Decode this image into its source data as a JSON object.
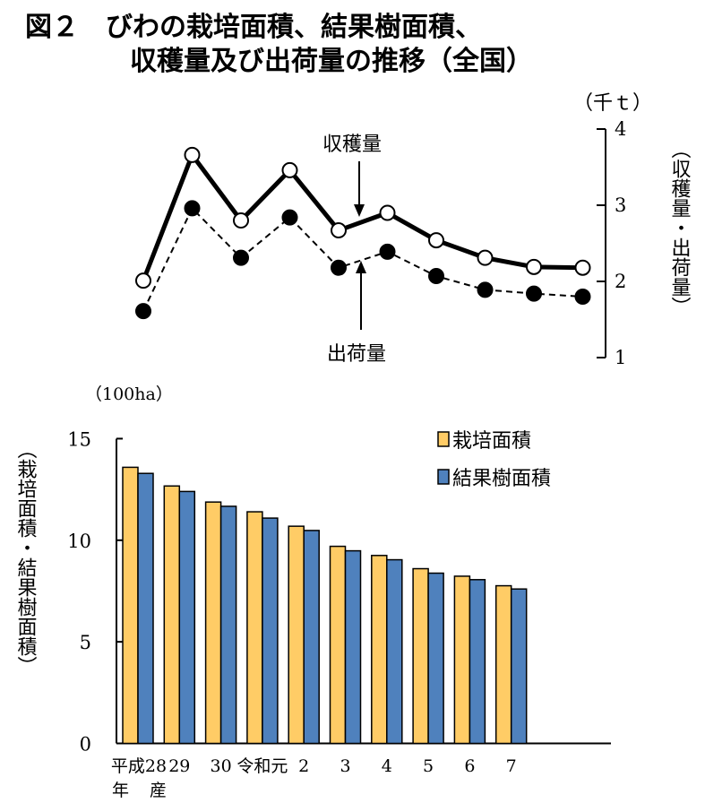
{
  "title": {
    "line1": "図２　びわの栽培面積、結果樹面積、",
    "line2": "収穫量及び出荷量の推移（全国）"
  },
  "colors": {
    "cultivated": "#FFCC66",
    "bearing": "#4F81BD",
    "line": "#000000"
  },
  "chart_data": [
    {
      "type": "line",
      "unit": "（千ｔ）",
      "ylabel": "（収穫量・出荷量）",
      "yaxis_side": "right",
      "ylim": [
        1,
        4
      ],
      "yticks": [
        "1",
        "2",
        "3",
        "4"
      ],
      "categories": [
        "平成28",
        "29",
        "30",
        "令和元",
        "2",
        "3",
        "4",
        "5",
        "6",
        "7"
      ],
      "series": [
        {
          "name": "収穫量",
          "marker": "open-circle",
          "style": "solid",
          "values": [
            2.01,
            3.66,
            2.8,
            3.46,
            2.67,
            2.9,
            2.54,
            2.31,
            2.19,
            2.18
          ]
        },
        {
          "name": "出荷量",
          "marker": "filled-circle",
          "style": "dashed",
          "values": [
            1.61,
            2.96,
            2.31,
            2.84,
            2.18,
            2.39,
            2.07,
            1.89,
            1.84,
            1.8
          ]
        }
      ]
    },
    {
      "type": "bar",
      "unit": "（100ha）",
      "ylabel": "（栽培面積・結果樹面積）",
      "ylim": [
        0,
        15
      ],
      "yticks": [
        "0",
        "5",
        "10",
        "15"
      ],
      "categories": [
        "平成28",
        "29",
        "30",
        "令和元",
        "2",
        "3",
        "4",
        "5",
        "6",
        "7"
      ],
      "xlabel_suffix": [
        "年",
        "産"
      ],
      "legend": "top-right",
      "series": [
        {
          "name": "栽培面積",
          "values": [
            13.59,
            12.67,
            11.88,
            11.4,
            10.69,
            9.7,
            9.25,
            8.6,
            8.23,
            7.76
          ]
        },
        {
          "name": "結果樹面積",
          "values": [
            13.29,
            12.4,
            11.67,
            11.09,
            10.48,
            9.48,
            9.04,
            8.38,
            8.06,
            7.6
          ]
        }
      ]
    }
  ]
}
